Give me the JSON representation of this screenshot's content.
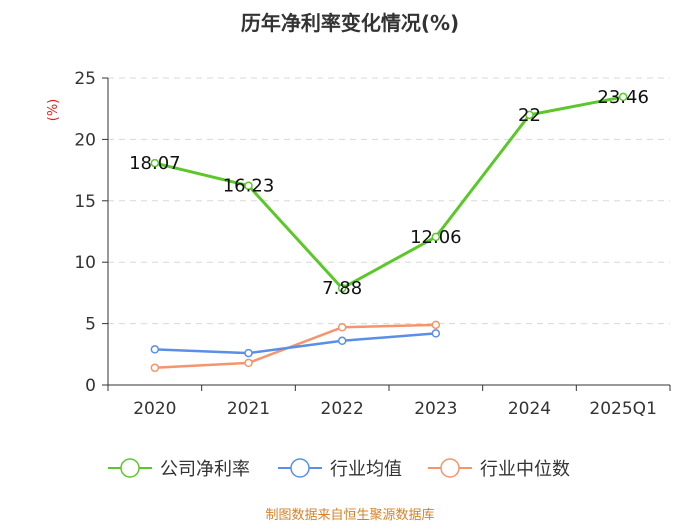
{
  "chart_data": {
    "type": "line",
    "title": "历年净利率变化情况(%)",
    "ylabel": "(%)",
    "xlabel": "",
    "categories": [
      "2020",
      "2021",
      "2022",
      "2023",
      "2024",
      "2025Q1"
    ],
    "ylim": [
      0,
      25
    ],
    "yticks": [
      0,
      5,
      10,
      15,
      20,
      25
    ],
    "grid": true,
    "legend_position": "bottom",
    "series": [
      {
        "name": "公司净利率",
        "color": "#5cc72b",
        "values": [
          18.07,
          16.23,
          7.88,
          12.06,
          22,
          23.46
        ],
        "labels": [
          "18.07",
          "16.23",
          "7.88",
          "12.06",
          "22",
          "23.46"
        ]
      },
      {
        "name": "行业均值",
        "color": "#5b8ee6",
        "values": [
          2.9,
          2.6,
          3.6,
          4.2,
          null,
          null
        ]
      },
      {
        "name": "行业中位数",
        "color": "#f4956b",
        "values": [
          1.4,
          1.8,
          4.7,
          4.9,
          null,
          null
        ]
      }
    ]
  },
  "footer": {
    "source": "制图数据来自恒生聚源数据库",
    "source_color": "#d4822a"
  },
  "colors": {
    "axis": "#333333",
    "grid": "#d8d8d8",
    "ylabel": "#e02020"
  }
}
